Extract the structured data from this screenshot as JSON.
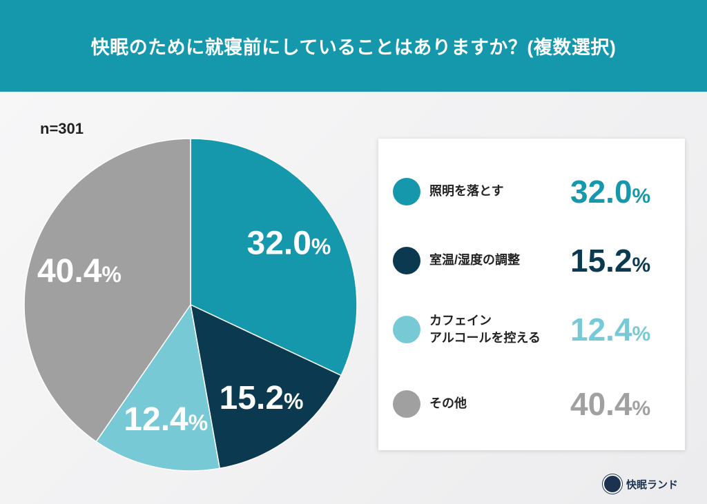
{
  "header": {
    "title": "快眠のために就寝前にしていることはありますか？(複数選択)"
  },
  "sample": "n=301",
  "chart_data": {
    "type": "pie",
    "title": "快眠のために就寝前にしていることはありますか？(複数選択)",
    "categories": [
      "照明を落とす",
      "室温/湿度の調整",
      "カフェイン アルコールを控える",
      "その他"
    ],
    "values": [
      32.0,
      15.2,
      12.4,
      40.4
    ],
    "value_labels": [
      "32.0",
      "15.2",
      "12.4",
      "40.4"
    ],
    "unit": "%",
    "colors": [
      "#1597ac",
      "#0b3a50",
      "#76c9d5",
      "#a0a0a0"
    ],
    "legend_placement": "right",
    "start": "top",
    "direction": "clockwise"
  },
  "legend": [
    {
      "label_lines": [
        "照明を落とす"
      ],
      "value": "32.0",
      "unit": "%"
    },
    {
      "label_lines": [
        "室温/湿度の調整"
      ],
      "value": "15.2",
      "unit": "%"
    },
    {
      "label_lines": [
        "カフェイン",
        "アルコールを控える"
      ],
      "value": "12.4",
      "unit": "%"
    },
    {
      "label_lines": [
        "その他"
      ],
      "value": "40.4",
      "unit": "%"
    }
  ],
  "brand": {
    "name": "快眠ランド"
  }
}
